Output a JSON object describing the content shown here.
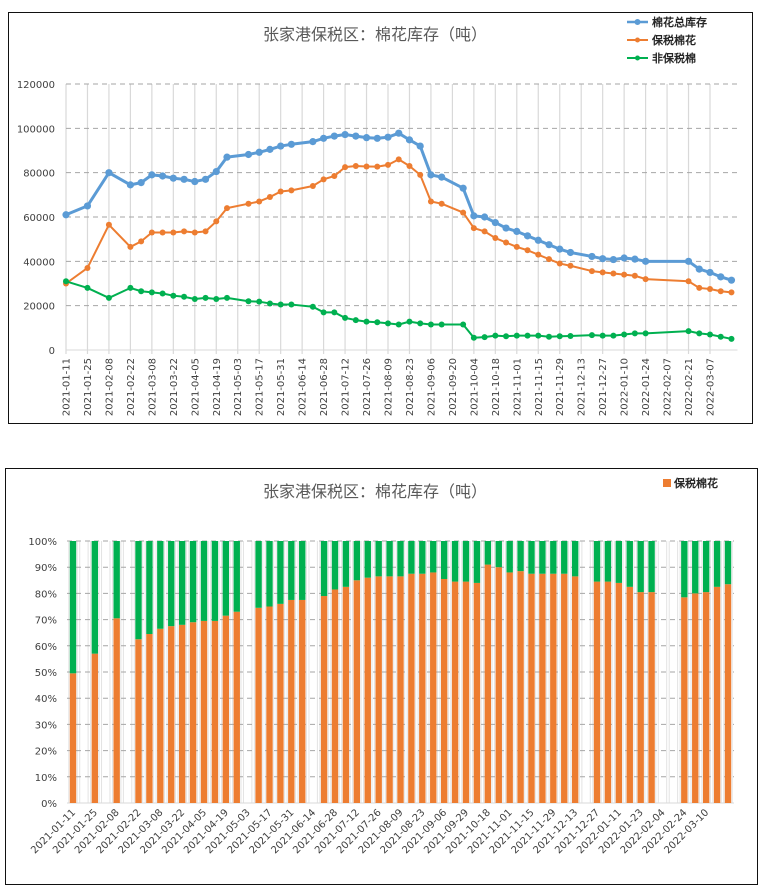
{
  "chart_data": [
    {
      "type": "line",
      "title": "张家港保税区：棉花库存（吨）",
      "xlabel": "",
      "ylabel": "",
      "ylim": [
        0,
        120000
      ],
      "yticks": [
        "0",
        "20000",
        "40000",
        "60000",
        "80000",
        "100000",
        "120000"
      ],
      "xticks": [
        "2021-01-11",
        "2021-01-25",
        "2021-02-08",
        "2021-02-22",
        "2021-03-08",
        "2021-03-22",
        "2021-04-05",
        "2021-04-19",
        "2021-05-03",
        "2021-05-17",
        "2021-05-31",
        "2021-06-14",
        "2021-06-28",
        "2021-07-12",
        "2021-07-26",
        "2021-08-09",
        "2021-08-23",
        "2021-09-06",
        "2021-09-20",
        "2021-10-04",
        "2021-10-18",
        "2021-11-01",
        "2021-11-15",
        "2021-11-29",
        "2021-12-13",
        "2021-12-27",
        "2022-01-10",
        "2022-01-24",
        "2022-02-07",
        "2022-02-21",
        "2022-03-07"
      ],
      "grid": true,
      "legend_position": "top-right",
      "x": [
        "2021-01-11",
        "2021-01-25",
        "2021-02-08",
        "2021-02-22",
        "2021-03-01",
        "2021-03-08",
        "2021-03-15",
        "2021-03-22",
        "2021-03-29",
        "2021-04-05",
        "2021-04-12",
        "2021-04-19",
        "2021-04-26",
        "2021-05-10",
        "2021-05-17",
        "2021-05-24",
        "2021-05-31",
        "2021-06-07",
        "2021-06-21",
        "2021-06-28",
        "2021-07-05",
        "2021-07-12",
        "2021-07-19",
        "2021-07-26",
        "2021-08-02",
        "2021-08-09",
        "2021-08-16",
        "2021-08-23",
        "2021-08-30",
        "2021-09-06",
        "2021-09-13",
        "2021-09-27",
        "2021-10-04",
        "2021-10-11",
        "2021-10-18",
        "2021-10-25",
        "2021-11-01",
        "2021-11-08",
        "2021-11-15",
        "2021-11-22",
        "2021-11-29",
        "2021-12-06",
        "2021-12-20",
        "2021-12-27",
        "2022-01-03",
        "2022-01-10",
        "2022-01-17",
        "2022-01-24",
        "2022-02-21",
        "2022-02-28",
        "2022-03-07",
        "2022-03-14",
        "2022-03-21"
      ],
      "series": [
        {
          "name": "棉花总库存",
          "color": "#5B9BD5",
          "values": [
            61000,
            65000,
            80000,
            74500,
            75500,
            79000,
            78500,
            77500,
            77000,
            76000,
            77000,
            80500,
            87000,
            88200,
            89200,
            90500,
            92000,
            92800,
            94000,
            95500,
            96500,
            97200,
            96500,
            95800,
            95500,
            96000,
            97800,
            94800,
            92000,
            79000,
            78000,
            73000,
            60500,
            60000,
            57500,
            55000,
            53500,
            51500,
            49500,
            47500,
            45500,
            44000,
            42200,
            41200,
            40800,
            41500,
            41000,
            40000,
            40000,
            36500,
            35000,
            33000,
            31500
          ]
        },
        {
          "name": "保税棉花",
          "color": "#ED7D31",
          "values": [
            30000,
            37000,
            56500,
            46500,
            49000,
            53000,
            53000,
            53000,
            53500,
            53000,
            53500,
            58000,
            64000,
            66000,
            67000,
            69000,
            71500,
            72000,
            74000,
            77000,
            78500,
            82500,
            83000,
            82800,
            82700,
            83500,
            86000,
            83000,
            79000,
            67000,
            66000,
            62000,
            55000,
            53500,
            50500,
            48500,
            46500,
            45000,
            43000,
            41000,
            39000,
            38000,
            35600,
            35000,
            34500,
            34000,
            33500,
            32000,
            31000,
            28000,
            27500,
            26500,
            26000
          ]
        },
        {
          "name": "非保税棉",
          "color": "#00B050",
          "values": [
            31000,
            28000,
            23500,
            28000,
            26500,
            26000,
            25500,
            24500,
            24000,
            23000,
            23500,
            23000,
            23500,
            22000,
            21800,
            21000,
            20500,
            20500,
            19500,
            17000,
            17000,
            14500,
            13500,
            12800,
            12500,
            12000,
            11500,
            12800,
            12000,
            11500,
            11500,
            11500,
            5500,
            5800,
            6500,
            6200,
            6500,
            6500,
            6500,
            6000,
            6200,
            6300,
            6700,
            6500,
            6500,
            7000,
            7500,
            7500,
            8500,
            7500,
            7000,
            6000,
            5000
          ]
        }
      ]
    },
    {
      "type": "bar",
      "stacked": "percent",
      "title": "张家港保税区：棉花库存（吨）",
      "xlabel": "",
      "ylabel": "",
      "ylim": [
        0,
        100
      ],
      "yticks": [
        "0%",
        "10%",
        "20%",
        "30%",
        "40%",
        "50%",
        "60%",
        "70%",
        "80%",
        "90%",
        "100%"
      ],
      "grid": true,
      "legend_position": "top-right",
      "legend": [
        "保税棉花"
      ],
      "xticks": [
        "2021-01-11",
        "2021-01-25",
        "2021-02-08",
        "2021-02-22",
        "2021-03-08",
        "2021-03-22",
        "2021-04-05",
        "2021-04-19",
        "2021-05-03",
        "2021-05-17",
        "2021-05-31",
        "2021-06-14",
        "2021-06-28",
        "2021-07-12",
        "2021-07-26",
        "2021-08-09",
        "2021-08-23",
        "2021-09-06",
        "2021-09-29",
        "2021-10-18",
        "2021-11-01",
        "2021-11-15",
        "2021-11-29",
        "2021-12-13",
        "2021-12-27",
        "2022-01-11",
        "2022-01-23",
        "2022-02-04",
        "2022-02-24",
        "2022-03-10"
      ],
      "slots": 61,
      "bars": [
        {
          "slot": 0,
          "bonded": 49.5
        },
        {
          "slot": 2,
          "bonded": 57
        },
        {
          "slot": 4,
          "bonded": 70.5
        },
        {
          "slot": 6,
          "bonded": 62.5
        },
        {
          "slot": 7,
          "bonded": 64.5
        },
        {
          "slot": 8,
          "bonded": 66.5
        },
        {
          "slot": 9,
          "bonded": 67.5
        },
        {
          "slot": 10,
          "bonded": 68
        },
        {
          "slot": 11,
          "bonded": 69
        },
        {
          "slot": 12,
          "bonded": 69.5
        },
        {
          "slot": 13,
          "bonded": 69.5
        },
        {
          "slot": 14,
          "bonded": 71.5
        },
        {
          "slot": 15,
          "bonded": 73
        },
        {
          "slot": 17,
          "bonded": 74.5
        },
        {
          "slot": 18,
          "bonded": 75
        },
        {
          "slot": 19,
          "bonded": 76
        },
        {
          "slot": 20,
          "bonded": 77.5
        },
        {
          "slot": 21,
          "bonded": 77.5
        },
        {
          "slot": 23,
          "bonded": 79
        },
        {
          "slot": 24,
          "bonded": 81.5
        },
        {
          "slot": 25,
          "bonded": 82.5
        },
        {
          "slot": 26,
          "bonded": 85
        },
        {
          "slot": 27,
          "bonded": 86
        },
        {
          "slot": 28,
          "bonded": 86.5
        },
        {
          "slot": 29,
          "bonded": 86.5
        },
        {
          "slot": 30,
          "bonded": 86.5
        },
        {
          "slot": 31,
          "bonded": 87.5
        },
        {
          "slot": 32,
          "bonded": 87.5
        },
        {
          "slot": 33,
          "bonded": 88
        },
        {
          "slot": 34,
          "bonded": 85.5
        },
        {
          "slot": 35,
          "bonded": 84.5
        },
        {
          "slot": 36,
          "bonded": 84.5
        },
        {
          "slot": 37,
          "bonded": 84
        },
        {
          "slot": 38,
          "bonded": 91
        },
        {
          "slot": 39,
          "bonded": 90
        },
        {
          "slot": 40,
          "bonded": 88
        },
        {
          "slot": 41,
          "bonded": 88.5
        },
        {
          "slot": 42,
          "bonded": 87.5
        },
        {
          "slot": 43,
          "bonded": 87.5
        },
        {
          "slot": 44,
          "bonded": 87.5
        },
        {
          "slot": 45,
          "bonded": 87.5
        },
        {
          "slot": 46,
          "bonded": 86.5
        },
        {
          "slot": 48,
          "bonded": 84.5
        },
        {
          "slot": 49,
          "bonded": 84.5
        },
        {
          "slot": 50,
          "bonded": 84
        },
        {
          "slot": 51,
          "bonded": 82.5
        },
        {
          "slot": 52,
          "bonded": 80.5
        },
        {
          "slot": 53,
          "bonded": 80.5
        },
        {
          "slot": 56,
          "bonded": 78.5
        },
        {
          "slot": 57,
          "bonded": 80
        },
        {
          "slot": 58,
          "bonded": 80.5
        },
        {
          "slot": 59,
          "bonded": 82.5
        },
        {
          "slot": 60,
          "bonded": 83.5
        }
      ],
      "colors": {
        "bonded": "#ED7D31",
        "non_bonded": "#00B050"
      }
    }
  ]
}
